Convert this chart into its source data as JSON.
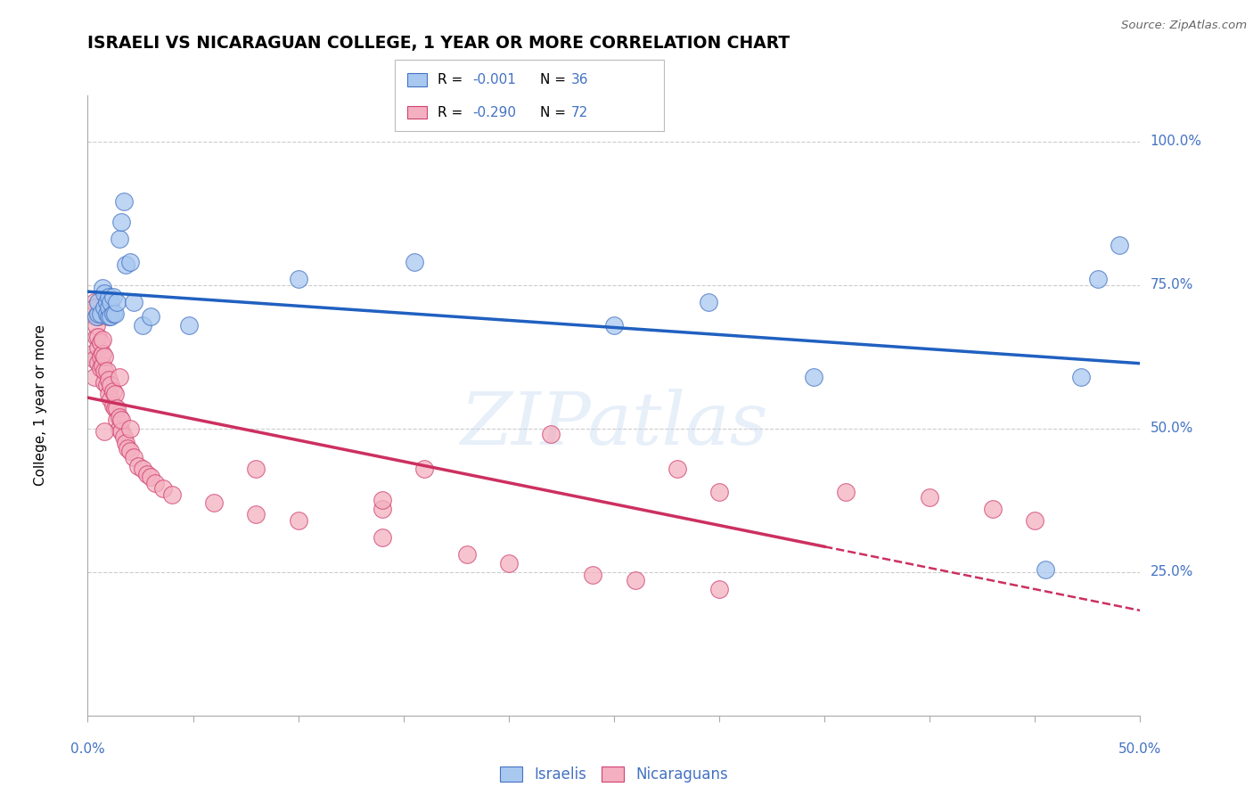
{
  "title": "ISRAELI VS NICARAGUAN COLLEGE, 1 YEAR OR MORE CORRELATION CHART",
  "source": "Source: ZipAtlas.com",
  "ylabel": "College, 1 year or more",
  "watermark": "ZIPatlas",
  "legend_r1": "-0.001",
  "legend_n1": "36",
  "legend_r2": "-0.290",
  "legend_n2": "72",
  "xlim": [
    0.0,
    0.5
  ],
  "ylim": [
    0.0,
    1.08
  ],
  "yticks": [
    0.25,
    0.5,
    0.75,
    1.0
  ],
  "ytick_labels": [
    "25.0%",
    "50.0%",
    "75.0%",
    "100.0%"
  ],
  "israeli_x": [
    0.004,
    0.005,
    0.005,
    0.006,
    0.007,
    0.008,
    0.008,
    0.009,
    0.009,
    0.01,
    0.01,
    0.01,
    0.011,
    0.011,
    0.012,
    0.012,
    0.013,
    0.014,
    0.015,
    0.016,
    0.017,
    0.018,
    0.02,
    0.022,
    0.026,
    0.03,
    0.048,
    0.1,
    0.155,
    0.25,
    0.295,
    0.345,
    0.455,
    0.472,
    0.48,
    0.49
  ],
  "israeli_y": [
    0.695,
    0.7,
    0.72,
    0.7,
    0.745,
    0.71,
    0.735,
    0.7,
    0.72,
    0.695,
    0.71,
    0.73,
    0.695,
    0.72,
    0.7,
    0.73,
    0.7,
    0.72,
    0.83,
    0.86,
    0.895,
    0.785,
    0.79,
    0.72,
    0.68,
    0.695,
    0.68,
    0.76,
    0.79,
    0.68,
    0.72,
    0.59,
    0.255,
    0.59,
    0.76,
    0.82
  ],
  "nicaraguan_x": [
    0.002,
    0.003,
    0.003,
    0.004,
    0.004,
    0.005,
    0.005,
    0.005,
    0.006,
    0.006,
    0.006,
    0.007,
    0.007,
    0.007,
    0.008,
    0.008,
    0.008,
    0.009,
    0.009,
    0.01,
    0.01,
    0.011,
    0.011,
    0.012,
    0.012,
    0.013,
    0.013,
    0.014,
    0.014,
    0.015,
    0.015,
    0.016,
    0.016,
    0.017,
    0.018,
    0.019,
    0.02,
    0.022,
    0.024,
    0.026,
    0.028,
    0.03,
    0.032,
    0.036,
    0.04,
    0.06,
    0.08,
    0.1,
    0.14,
    0.18,
    0.2,
    0.24,
    0.26,
    0.3,
    0.003,
    0.005,
    0.01,
    0.015,
    0.02,
    0.08,
    0.14,
    0.22,
    0.28,
    0.16,
    0.14,
    0.3,
    0.36,
    0.4,
    0.43,
    0.45,
    0.003,
    0.008
  ],
  "nicaraguan_y": [
    0.63,
    0.59,
    0.62,
    0.66,
    0.68,
    0.615,
    0.64,
    0.66,
    0.605,
    0.625,
    0.65,
    0.61,
    0.63,
    0.655,
    0.58,
    0.6,
    0.625,
    0.575,
    0.6,
    0.56,
    0.585,
    0.55,
    0.575,
    0.54,
    0.565,
    0.535,
    0.56,
    0.515,
    0.535,
    0.5,
    0.52,
    0.495,
    0.515,
    0.485,
    0.475,
    0.465,
    0.46,
    0.45,
    0.435,
    0.43,
    0.42,
    0.415,
    0.405,
    0.395,
    0.385,
    0.37,
    0.35,
    0.34,
    0.31,
    0.28,
    0.265,
    0.245,
    0.235,
    0.22,
    0.72,
    0.695,
    0.695,
    0.59,
    0.5,
    0.43,
    0.36,
    0.49,
    0.43,
    0.43,
    0.375,
    0.39,
    0.39,
    0.38,
    0.36,
    0.34,
    0.71,
    0.495
  ],
  "blue_fill": "#a8c8f0",
  "blue_edge": "#4472c4",
  "pink_fill": "#f4b0c0",
  "pink_edge": "#d04070",
  "blue_line_color": "#2060c0",
  "pink_line_color": "#cc3060",
  "bg_color": "#ffffff",
  "grid_color": "#cccccc",
  "tick_color": "#4472c4"
}
